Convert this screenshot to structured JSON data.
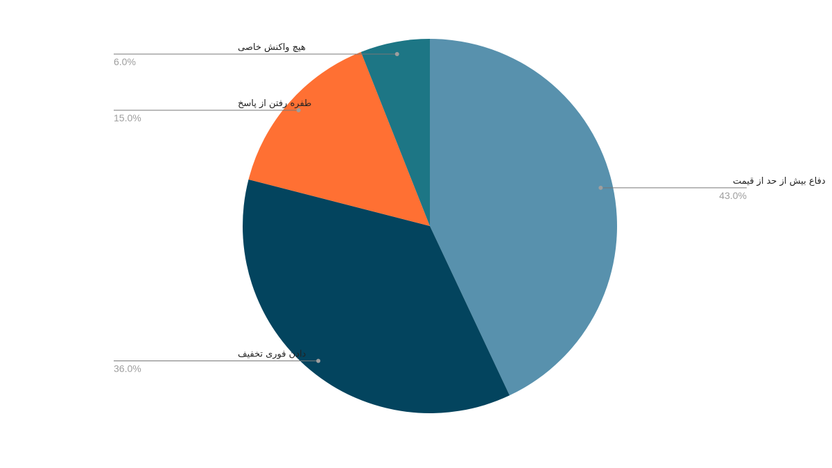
{
  "chart_data": {
    "type": "pie",
    "title": "",
    "start_angle": "top",
    "direction": "clockwise",
    "legend": "leader-line labels",
    "slices": [
      {
        "label": "دفاع بیش از حد از قیمت",
        "value": 43.0,
        "display": "43.0%",
        "color": "#5891AD"
      },
      {
        "label": "دادن فوری تخفیف",
        "value": 36.0,
        "display": "36.0%",
        "color": "#03445E"
      },
      {
        "label": "طفره رفتن از پاسخ",
        "value": 15.0,
        "display": "15.0%",
        "color": "#FF7033"
      },
      {
        "label": "هیچ واکنش خاصی",
        "value": 6.0,
        "display": "6.0%",
        "color": "#1D7685"
      }
    ]
  }
}
